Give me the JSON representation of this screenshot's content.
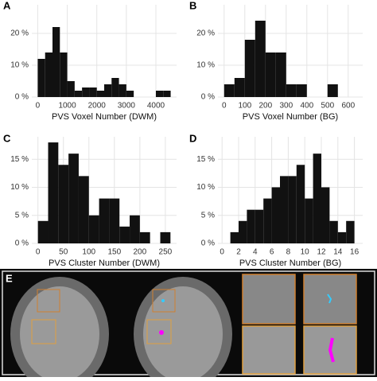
{
  "chart_data": [
    {
      "type": "histogram",
      "label": "A",
      "xlabel": "PVS Voxel Number (DWM)",
      "bins": [
        0,
        250,
        500,
        750,
        1000,
        1250,
        1500,
        1750,
        2000,
        2250,
        2500,
        2750,
        3000,
        3250,
        3500,
        3750,
        4000,
        4250,
        4500
      ],
      "values": [
        12,
        14,
        22,
        14,
        5,
        2,
        3,
        3,
        2,
        4,
        6,
        4,
        2,
        0,
        0,
        0,
        2,
        2
      ],
      "color": "#111111",
      "xlim": [
        -200,
        4700
      ],
      "xticks": [
        0,
        1000,
        2000,
        3000,
        4000
      ],
      "ylim": [
        0,
        29
      ],
      "yticks": [
        {
          "value": 0,
          "label": "0 %"
        },
        {
          "value": 10,
          "label": "10 %"
        },
        {
          "value": 20,
          "label": "20 %"
        }
      ],
      "grid": true
    },
    {
      "type": "histogram",
      "label": "B",
      "xlabel": "PVS Voxel Number (BG)",
      "bins": [
        0,
        50,
        100,
        150,
        200,
        250,
        300,
        350,
        400,
        450,
        500,
        550
      ],
      "values": [
        4,
        6,
        18,
        24,
        14,
        14,
        4,
        4,
        0,
        0,
        4
      ],
      "color": "#111111",
      "xlim": [
        -30,
        670
      ],
      "xticks": [
        0,
        100,
        200,
        300,
        400,
        500,
        600
      ],
      "ylim": [
        0,
        29
      ],
      "yticks": [
        {
          "value": 0,
          "label": "0 %"
        },
        {
          "value": 10,
          "label": "10 %"
        },
        {
          "value": 20,
          "label": "20 %"
        }
      ],
      "grid": true
    },
    {
      "type": "histogram",
      "label": "C",
      "xlabel": "PVS Cluster Number (DWM)",
      "bins": [
        0,
        20,
        40,
        60,
        80,
        100,
        120,
        140,
        160,
        180,
        200,
        220,
        240,
        260
      ],
      "values": [
        4,
        18,
        14,
        16,
        12,
        5,
        8,
        8,
        3,
        5,
        2,
        0,
        2
      ],
      "color": "#111111",
      "xlim": [
        -12,
        272
      ],
      "xticks": [
        0,
        50,
        100,
        150,
        200,
        250
      ],
      "ylim": [
        0,
        19
      ],
      "yticks": [
        {
          "value": 0,
          "label": "0 %"
        },
        {
          "value": 5,
          "label": "5 %"
        },
        {
          "value": 10,
          "label": "10 %"
        },
        {
          "value": 15,
          "label": "15 %"
        }
      ],
      "grid": true
    },
    {
      "type": "histogram",
      "label": "D",
      "xlabel": "PVS Cluster Number (BG)",
      "bins": [
        1,
        2,
        3,
        4,
        5,
        6,
        7,
        8,
        9,
        10,
        11,
        12,
        13,
        14,
        15,
        16
      ],
      "values": [
        2,
        4,
        6,
        6,
        8,
        10,
        12,
        12,
        14,
        8,
        16,
        10,
        4,
        2,
        4
      ],
      "color": "#111111",
      "xlim": [
        -0.5,
        17
      ],
      "xticks": [
        0,
        2,
        4,
        6,
        8,
        10,
        12,
        14,
        16
      ],
      "ylim": [
        0,
        19
      ],
      "yticks": [
        {
          "value": 0,
          "label": "0 %"
        },
        {
          "value": 5,
          "label": "5 %"
        },
        {
          "value": 10,
          "label": "10 %"
        },
        {
          "value": 15,
          "label": "15 %"
        }
      ],
      "grid": true
    }
  ],
  "panel_e": {
    "label": "E"
  }
}
